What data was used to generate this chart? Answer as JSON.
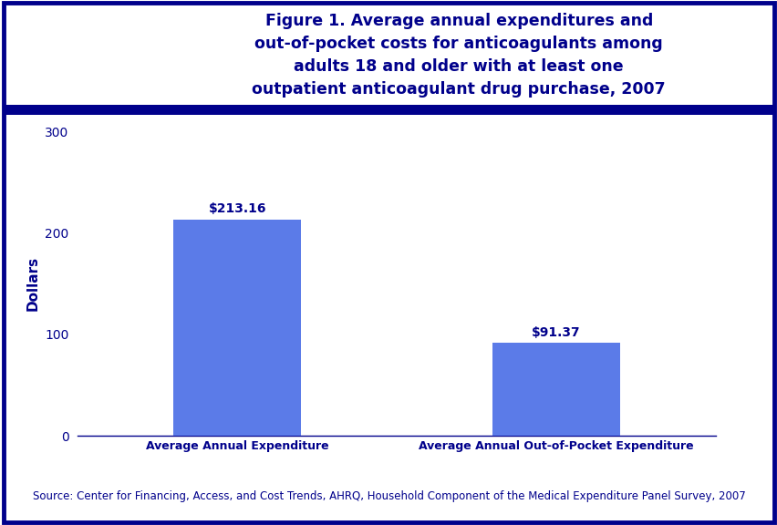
{
  "categories": [
    "Average Annual Expenditure",
    "Average Annual Out-of-Pocket Expenditure"
  ],
  "values": [
    213.16,
    91.37
  ],
  "labels": [
    "$213.16",
    "$91.37"
  ],
  "bar_color": "#5B7BE8",
  "title_line1": "Figure 1. Average annual expenditures and",
  "title_line2": "out-of-pocket costs for anticoagulants among",
  "title_line3": "adults 18 and older with at least one",
  "title_line4": "outpatient anticoagulant drug purchase, 2007",
  "ylabel": "Dollars",
  "ylim": [
    0,
    300
  ],
  "yticks": [
    0,
    100,
    200,
    300
  ],
  "source_text": "Source: Center for Financing, Access, and Cost Trends, AHRQ, Household Component of the Medical Expenditure Panel Survey, 2007",
  "title_color": "#00008B",
  "axis_label_color": "#00008B",
  "tick_label_color": "#00008B",
  "bar_label_color": "#00008B",
  "source_color": "#00008B",
  "background_color": "#ffffff",
  "header_bg_color": "#ffffff",
  "header_line_color": "#00008B",
  "outer_border_color": "#00008B",
  "title_fontsize": 12.5,
  "axis_label_fontsize": 9,
  "tick_fontsize": 10,
  "bar_label_fontsize": 10,
  "source_fontsize": 8.5,
  "bar_positions": [
    0.25,
    0.75
  ],
  "bar_width": 0.2,
  "xlim": [
    0.0,
    1.0
  ]
}
